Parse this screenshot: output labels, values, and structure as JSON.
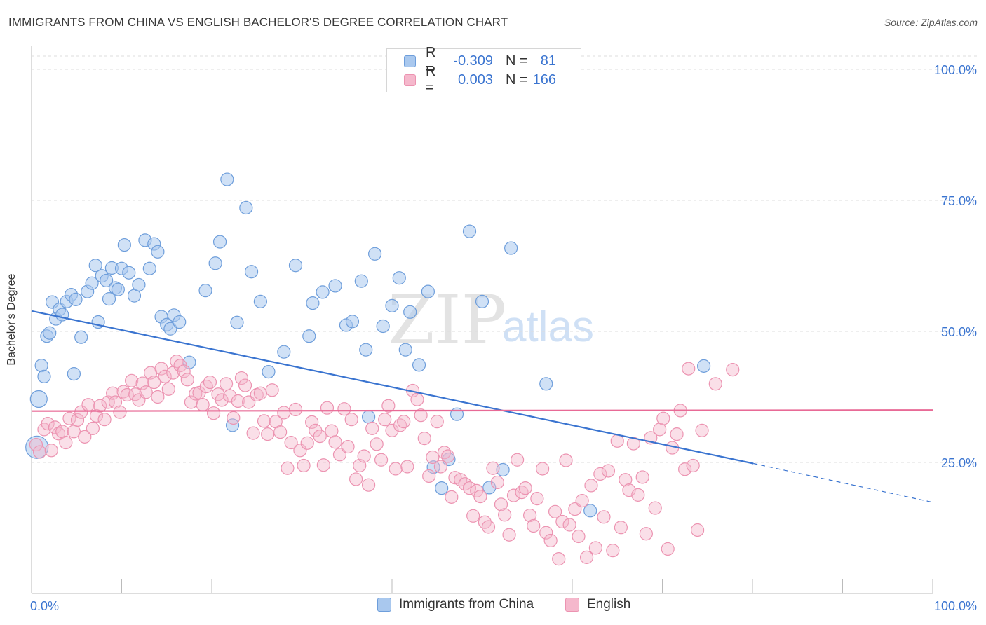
{
  "title": "IMMIGRANTS FROM CHINA VS ENGLISH BACHELOR'S DEGREE CORRELATION CHART",
  "source": "Source: ZipAtlas.com",
  "watermark": {
    "zip": "ZIP",
    "atlas": "atlas"
  },
  "colors": {
    "blue": "#3a74d0",
    "blue_fill": "#a9c8ee",
    "blue_stroke": "#6e9edb",
    "pink": "#e86a96",
    "pink_fill": "#f5b8cc",
    "pink_stroke": "#ec93b1",
    "grid": "#dddddd",
    "axis_text": "#3a74d0"
  },
  "legend": {
    "rows": [
      {
        "r_label": "R =",
        "r_value": "-0.309",
        "n_label": "N =",
        "n_value": "81"
      },
      {
        "r_label": "R =",
        "r_value": "0.003",
        "n_label": "N =",
        "n_value": "166"
      }
    ]
  },
  "bottom_legend": {
    "series1": "Immigrants from China",
    "series2": "English"
  },
  "chart_data": {
    "type": "scatter",
    "title": "IMMIGRANTS FROM CHINA VS ENGLISH BACHELOR'S DEGREE CORRELATION CHART",
    "xlabel": "",
    "ylabel": "Bachelor's Degree",
    "xlim": [
      0,
      100
    ],
    "ylim": [
      0,
      100
    ],
    "x_tick_labels": [
      "0.0%",
      "100.0%"
    ],
    "y_ticks": [
      25,
      50,
      75,
      100
    ],
    "y_tick_labels": [
      "25.0%",
      "50.0%",
      "75.0%",
      "100.0%"
    ],
    "grid": "horizontal dashed",
    "legend_position": "top-center",
    "series": [
      {
        "name": "Immigrants from China",
        "color": "#3a74d0",
        "r": -0.309,
        "n": 81,
        "trend": {
          "x0": 0,
          "y0": 53.9,
          "x1": 80.1,
          "y1": 24.8,
          "dashed_to_x": 100,
          "dashed_to_y": 17.4
        },
        "points": [
          [
            0.6,
            27.9
          ],
          [
            0.8,
            37.1
          ],
          [
            1.1,
            43.5
          ],
          [
            1.4,
            41.4
          ],
          [
            1.7,
            49.1
          ],
          [
            2.0,
            49.7
          ],
          [
            2.3,
            55.6
          ],
          [
            2.7,
            52.4
          ],
          [
            3.1,
            54.2
          ],
          [
            3.4,
            53.2
          ],
          [
            3.9,
            55.7
          ],
          [
            4.4,
            57.0
          ],
          [
            4.7,
            41.9
          ],
          [
            4.9,
            56.1
          ],
          [
            5.5,
            48.9
          ],
          [
            6.2,
            57.6
          ],
          [
            6.7,
            59.2
          ],
          [
            7.1,
            62.6
          ],
          [
            7.4,
            51.8
          ],
          [
            7.8,
            60.6
          ],
          [
            8.3,
            59.7
          ],
          [
            8.9,
            62.1
          ],
          [
            9.3,
            58.3
          ],
          [
            10.0,
            62.0
          ],
          [
            8.6,
            56.2
          ],
          [
            9.6,
            58.0
          ],
          [
            10.3,
            66.5
          ],
          [
            10.8,
            61.2
          ],
          [
            11.4,
            56.8
          ],
          [
            11.9,
            58.9
          ],
          [
            12.6,
            67.4
          ],
          [
            13.1,
            62.0
          ],
          [
            13.6,
            66.7
          ],
          [
            14.0,
            65.2
          ],
          [
            14.4,
            52.8
          ],
          [
            15.0,
            51.3
          ],
          [
            15.4,
            50.5
          ],
          [
            15.8,
            53.1
          ],
          [
            16.4,
            51.8
          ],
          [
            17.5,
            44.1
          ],
          [
            19.3,
            57.8
          ],
          [
            20.4,
            63.0
          ],
          [
            20.9,
            67.1
          ],
          [
            21.7,
            79.0
          ],
          [
            22.8,
            51.7
          ],
          [
            22.3,
            32.1
          ],
          [
            23.8,
            73.6
          ],
          [
            24.4,
            61.4
          ],
          [
            25.4,
            55.7
          ],
          [
            26.3,
            42.3
          ],
          [
            28.0,
            46.1
          ],
          [
            29.3,
            62.6
          ],
          [
            30.8,
            49.1
          ],
          [
            31.2,
            55.4
          ],
          [
            32.3,
            57.5
          ],
          [
            33.7,
            58.7
          ],
          [
            34.9,
            51.2
          ],
          [
            35.6,
            51.9
          ],
          [
            36.6,
            59.6
          ],
          [
            37.1,
            46.5
          ],
          [
            37.4,
            33.7
          ],
          [
            38.1,
            64.8
          ],
          [
            39.0,
            51.0
          ],
          [
            40.0,
            54.9
          ],
          [
            40.8,
            60.2
          ],
          [
            41.5,
            46.5
          ],
          [
            42.0,
            53.7
          ],
          [
            43.0,
            43.6
          ],
          [
            44.0,
            57.6
          ],
          [
            44.6,
            24.1
          ],
          [
            45.5,
            20.1
          ],
          [
            46.3,
            25.6
          ],
          [
            47.2,
            34.2
          ],
          [
            48.6,
            69.1
          ],
          [
            50.0,
            55.7
          ],
          [
            50.8,
            20.2
          ],
          [
            52.3,
            23.6
          ],
          [
            53.2,
            65.9
          ],
          [
            57.1,
            40.0
          ],
          [
            62.0,
            15.8
          ],
          [
            74.6,
            43.4
          ]
        ]
      },
      {
        "name": "English",
        "color": "#e86a96",
        "r": 0.003,
        "n": 166,
        "trend": {
          "x0": 0,
          "y0": 34.8,
          "x1": 100,
          "y1": 35.0
        },
        "points": [
          [
            0.5,
            28.4
          ],
          [
            0.9,
            27.0
          ],
          [
            1.4,
            31.3
          ],
          [
            1.8,
            32.4
          ],
          [
            2.2,
            27.3
          ],
          [
            2.6,
            31.7
          ],
          [
            3.0,
            30.5
          ],
          [
            3.4,
            30.9
          ],
          [
            3.8,
            28.8
          ],
          [
            4.2,
            33.4
          ],
          [
            4.7,
            30.9
          ],
          [
            5.1,
            33.1
          ],
          [
            5.5,
            34.6
          ],
          [
            5.9,
            29.9
          ],
          [
            6.3,
            36.0
          ],
          [
            6.8,
            31.5
          ],
          [
            7.2,
            33.9
          ],
          [
            7.6,
            35.8
          ],
          [
            8.1,
            33.2
          ],
          [
            8.5,
            36.5
          ],
          [
            9.0,
            38.2
          ],
          [
            9.3,
            36.5
          ],
          [
            9.8,
            34.6
          ],
          [
            10.2,
            38.5
          ],
          [
            10.6,
            37.9
          ],
          [
            11.1,
            40.6
          ],
          [
            11.5,
            38.0
          ],
          [
            11.9,
            36.9
          ],
          [
            12.3,
            40.1
          ],
          [
            12.7,
            38.4
          ],
          [
            13.2,
            42.1
          ],
          [
            13.6,
            40.3
          ],
          [
            14.0,
            37.5
          ],
          [
            14.4,
            42.9
          ],
          [
            14.8,
            41.4
          ],
          [
            15.2,
            39.0
          ],
          [
            15.7,
            42.1
          ],
          [
            16.1,
            44.3
          ],
          [
            16.5,
            43.5
          ],
          [
            16.9,
            42.4
          ],
          [
            17.3,
            40.8
          ],
          [
            17.7,
            36.5
          ],
          [
            18.2,
            38.1
          ],
          [
            18.6,
            38.3
          ],
          [
            19.0,
            36.0
          ],
          [
            19.4,
            39.5
          ],
          [
            19.8,
            40.3
          ],
          [
            20.2,
            34.4
          ],
          [
            20.7,
            38.0
          ],
          [
            21.1,
            36.9
          ],
          [
            21.6,
            40.0
          ],
          [
            22.0,
            37.7
          ],
          [
            22.4,
            33.5
          ],
          [
            22.9,
            36.7
          ],
          [
            23.3,
            41.1
          ],
          [
            23.7,
            39.7
          ],
          [
            24.1,
            36.5
          ],
          [
            24.6,
            30.6
          ],
          [
            25.0,
            37.9
          ],
          [
            25.4,
            38.2
          ],
          [
            25.8,
            32.9
          ],
          [
            26.2,
            30.4
          ],
          [
            26.7,
            38.8
          ],
          [
            27.1,
            32.8
          ],
          [
            27.6,
            30.8
          ],
          [
            28.0,
            34.5
          ],
          [
            28.4,
            23.9
          ],
          [
            28.8,
            28.8
          ],
          [
            29.3,
            35.1
          ],
          [
            29.8,
            27.3
          ],
          [
            30.2,
            24.4
          ],
          [
            30.6,
            28.7
          ],
          [
            31.1,
            32.7
          ],
          [
            31.5,
            31.1
          ],
          [
            32.0,
            30.0
          ],
          [
            32.4,
            24.5
          ],
          [
            32.8,
            35.4
          ],
          [
            33.3,
            31.0
          ],
          [
            33.7,
            28.9
          ],
          [
            34.2,
            26.5
          ],
          [
            34.7,
            35.2
          ],
          [
            35.1,
            28.0
          ],
          [
            35.5,
            33.2
          ],
          [
            36.0,
            21.8
          ],
          [
            36.4,
            24.4
          ],
          [
            36.9,
            26.2
          ],
          [
            37.4,
            20.7
          ],
          [
            37.8,
            31.5
          ],
          [
            38.3,
            28.5
          ],
          [
            38.8,
            25.5
          ],
          [
            39.2,
            33.2
          ],
          [
            39.6,
            35.8
          ],
          [
            40.0,
            31.1
          ],
          [
            40.4,
            23.8
          ],
          [
            40.9,
            32.1
          ],
          [
            41.3,
            32.8
          ],
          [
            41.7,
            24.2
          ],
          [
            42.3,
            38.7
          ],
          [
            42.8,
            37.0
          ],
          [
            43.2,
            34.0
          ],
          [
            43.6,
            29.6
          ],
          [
            44.1,
            22.4
          ],
          [
            44.5,
            26.0
          ],
          [
            45.0,
            32.8
          ],
          [
            45.4,
            24.2
          ],
          [
            45.8,
            26.9
          ],
          [
            46.2,
            26.2
          ],
          [
            46.6,
            18.4
          ],
          [
            47.0,
            22.1
          ],
          [
            47.6,
            21.7
          ],
          [
            48.1,
            20.9
          ],
          [
            48.6,
            20.1
          ],
          [
            49.0,
            14.8
          ],
          [
            49.4,
            19.6
          ],
          [
            49.8,
            18.5
          ],
          [
            50.3,
            13.6
          ],
          [
            50.7,
            12.7
          ],
          [
            51.2,
            23.9
          ],
          [
            51.7,
            21.2
          ],
          [
            52.1,
            17.0
          ],
          [
            52.5,
            15.0
          ],
          [
            53.0,
            11.2
          ],
          [
            53.5,
            18.7
          ],
          [
            53.9,
            25.5
          ],
          [
            54.4,
            19.3
          ],
          [
            54.8,
            20.1
          ],
          [
            55.3,
            14.9
          ],
          [
            55.7,
            12.9
          ],
          [
            56.1,
            18.1
          ],
          [
            56.7,
            23.8
          ],
          [
            57.1,
            11.6
          ],
          [
            57.6,
            10.1
          ],
          [
            58.1,
            15.6
          ],
          [
            58.5,
            6.6
          ],
          [
            58.9,
            13.7
          ],
          [
            59.3,
            25.4
          ],
          [
            59.7,
            13.1
          ],
          [
            60.3,
            16.1
          ],
          [
            60.7,
            10.9
          ],
          [
            61.1,
            17.7
          ],
          [
            61.6,
            6.9
          ],
          [
            62.1,
            20.6
          ],
          [
            62.6,
            8.7
          ],
          [
            63.1,
            22.8
          ],
          [
            63.5,
            14.6
          ],
          [
            64.0,
            23.4
          ],
          [
            64.5,
            8.2
          ],
          [
            65.0,
            29.1
          ],
          [
            65.4,
            12.6
          ],
          [
            65.9,
            21.7
          ],
          [
            66.3,
            19.7
          ],
          [
            66.8,
            28.6
          ],
          [
            67.3,
            18.8
          ],
          [
            67.8,
            22.2
          ],
          [
            68.2,
            11.4
          ],
          [
            68.7,
            29.7
          ],
          [
            69.2,
            16.3
          ],
          [
            69.7,
            31.3
          ],
          [
            70.1,
            33.4
          ],
          [
            70.6,
            8.5
          ],
          [
            71.1,
            27.8
          ],
          [
            71.6,
            30.4
          ],
          [
            72.0,
            34.9
          ],
          [
            72.5,
            23.7
          ],
          [
            72.9,
            42.9
          ],
          [
            73.4,
            24.4
          ],
          [
            73.9,
            12.1
          ],
          [
            74.4,
            31.1
          ],
          [
            75.9,
            40.0
          ],
          [
            77.8,
            42.7
          ]
        ]
      }
    ]
  }
}
